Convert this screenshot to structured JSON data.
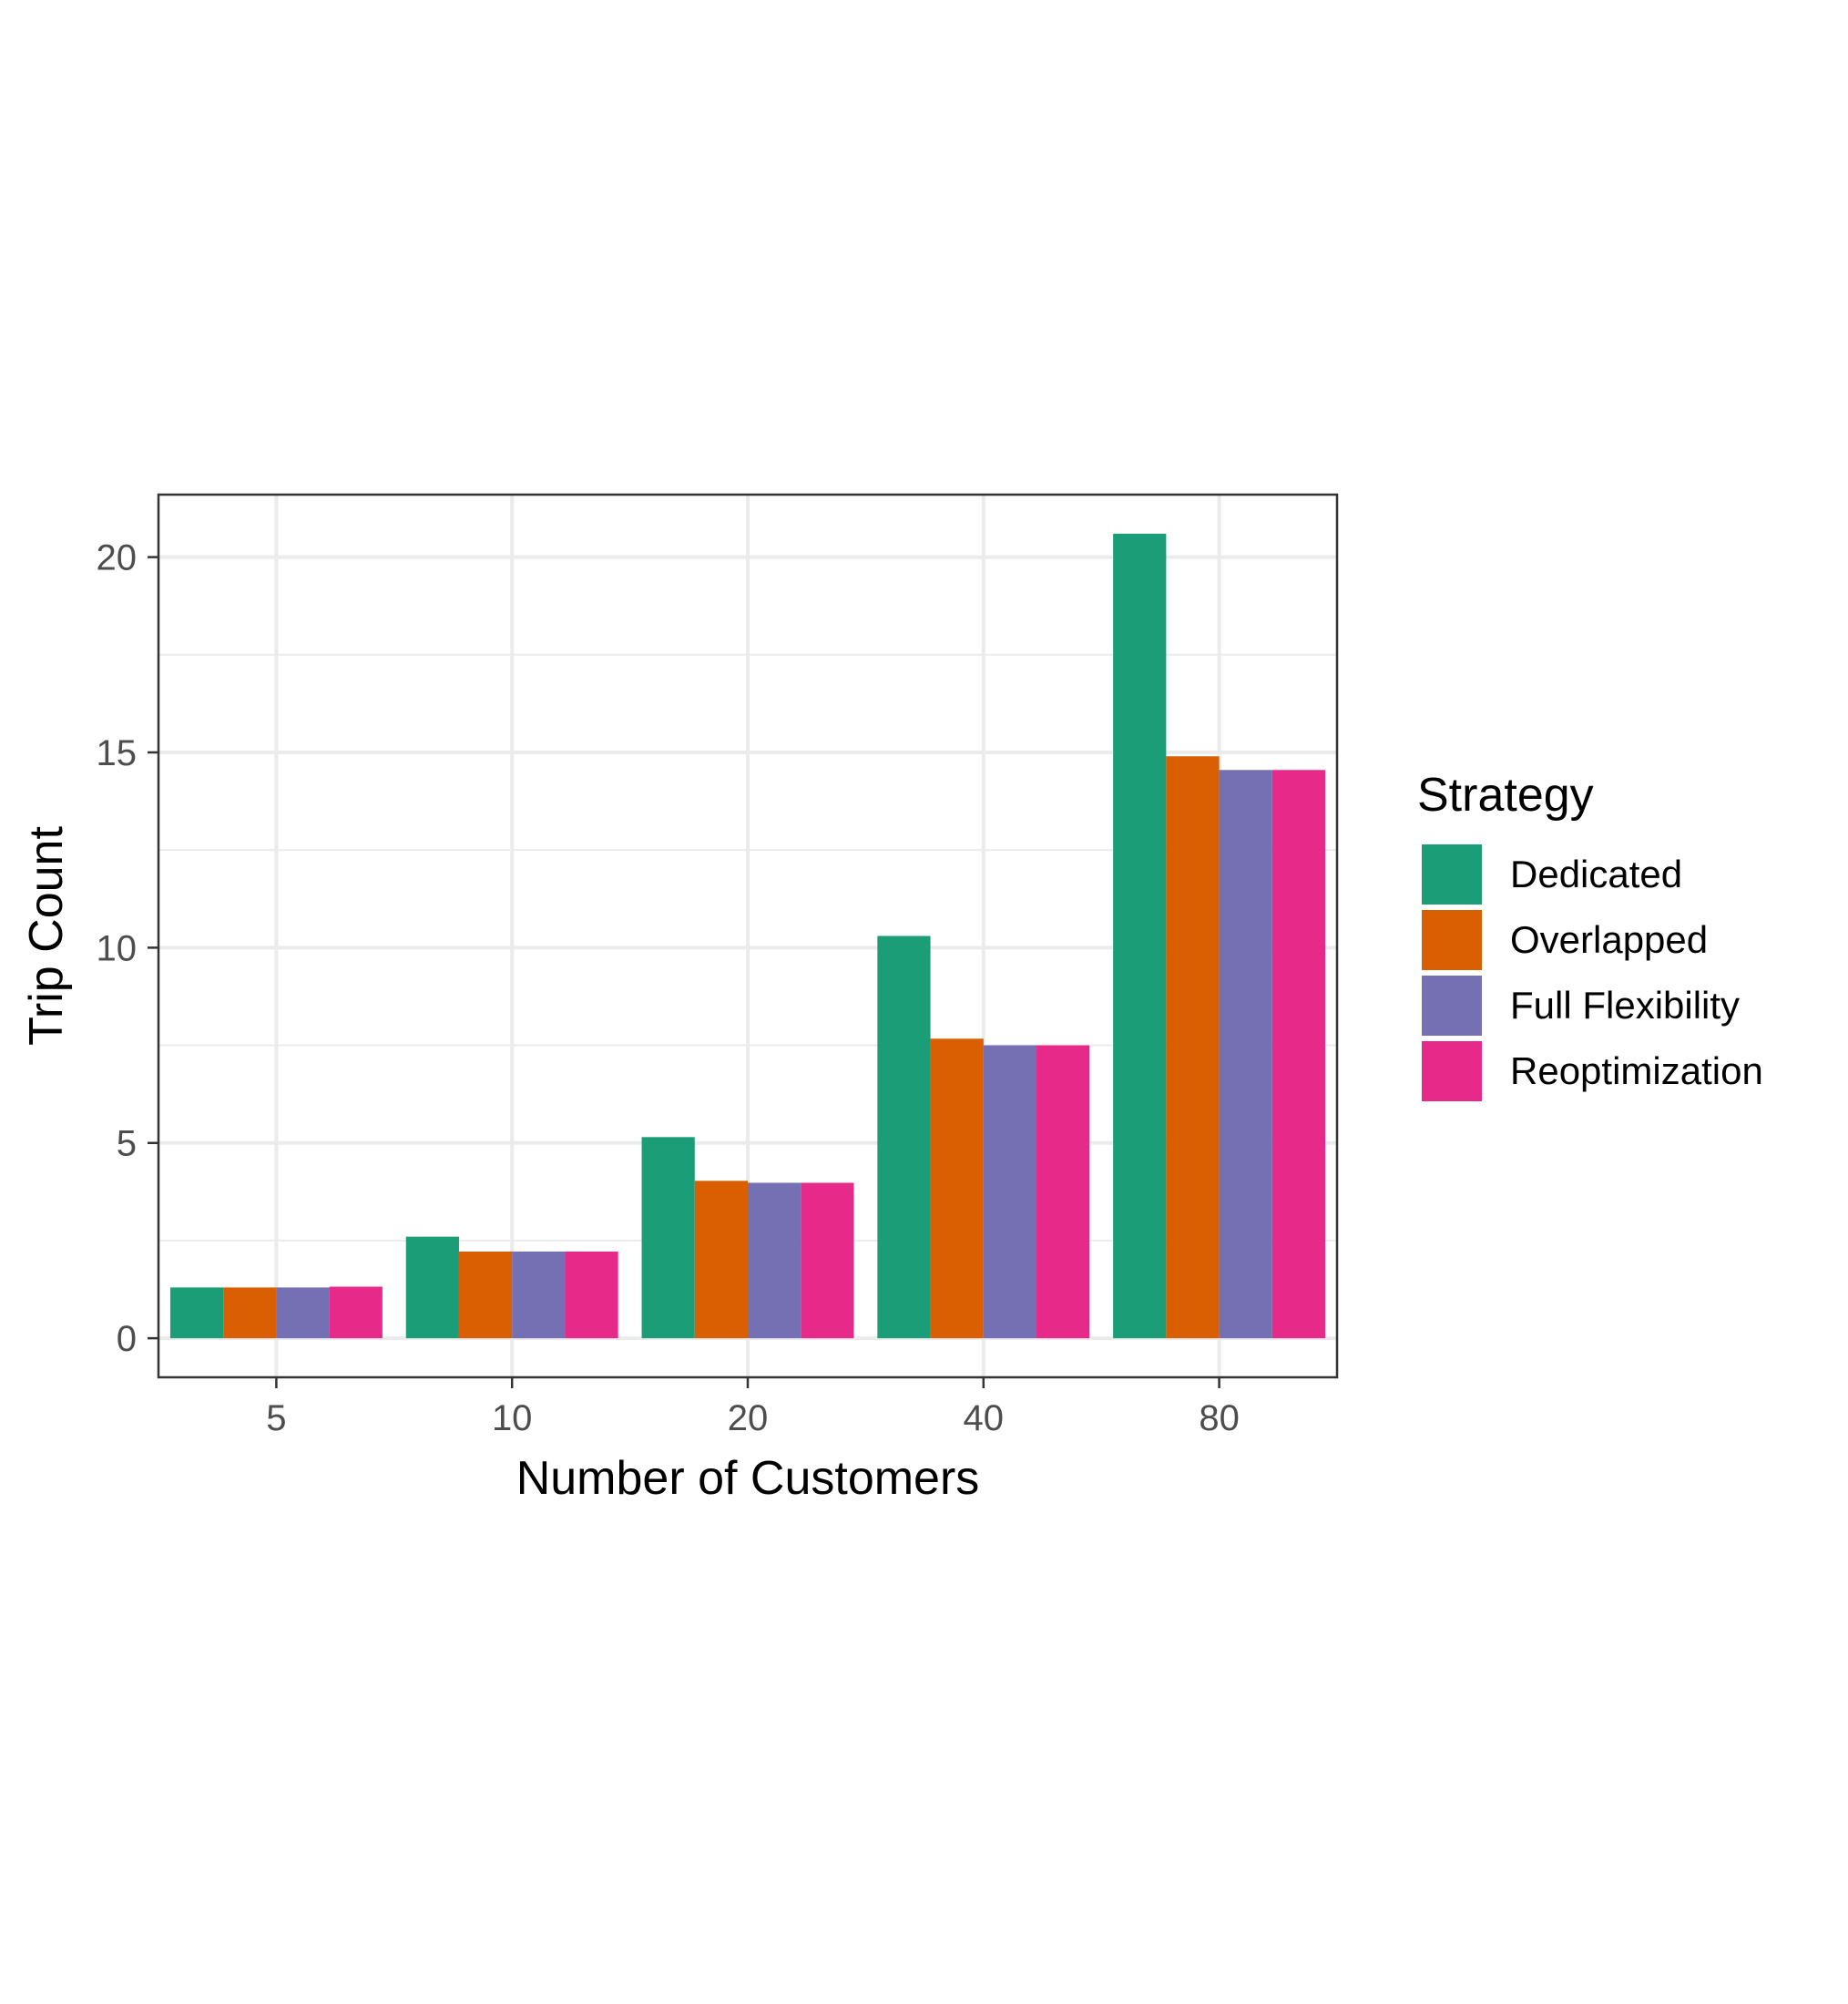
{
  "chart_data": {
    "type": "bar",
    "xlabel": "Number of Customers",
    "ylabel": "Trip Count",
    "categories": [
      "5",
      "10",
      "20",
      "40",
      "80"
    ],
    "ylim": [
      -1,
      21.6
    ],
    "yticks": [
      0,
      5,
      10,
      15,
      20
    ],
    "grid": true,
    "legend": {
      "title": "Strategy",
      "placement": "right"
    },
    "series": [
      {
        "name": "Dedicated",
        "color": "#1b9e77",
        "values": [
          1.3,
          2.6,
          5.15,
          10.3,
          20.6
        ]
      },
      {
        "name": "Overlapped",
        "color": "#d95f02",
        "values": [
          1.3,
          2.22,
          4.03,
          7.67,
          14.9
        ]
      },
      {
        "name": "Full Flexibility",
        "color": "#7570b3",
        "values": [
          1.3,
          2.22,
          3.98,
          7.5,
          14.55
        ]
      },
      {
        "name": "Reoptimization",
        "color": "#e7298a",
        "values": [
          1.32,
          2.22,
          3.98,
          7.5,
          14.55
        ]
      }
    ]
  }
}
